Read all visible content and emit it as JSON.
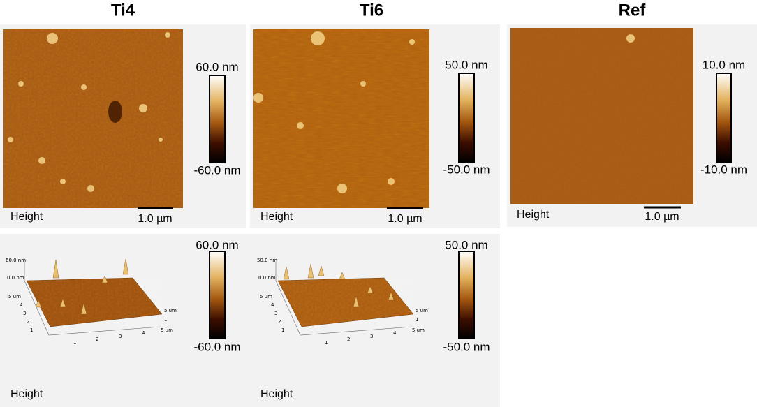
{
  "panels": [
    {
      "title": "Ti4",
      "top": {
        "max": "60.0 nm",
        "min": "-60.0 nm",
        "label": "Height",
        "scale": "1.0 µm"
      },
      "bottom": {
        "max": "60.0 nm",
        "min": "-60.0 nm",
        "label": "Height",
        "axis_labels": [
          "60.0 nm",
          "0.0 nm",
          "5 um",
          "4",
          "3",
          "2",
          "1",
          "1",
          "2",
          "3",
          "4",
          "5 um",
          "1",
          "5 um"
        ]
      }
    },
    {
      "title": "Ti6",
      "top": {
        "max": "50.0 nm",
        "min": "-50.0 nm",
        "label": "Height",
        "scale": "1.0 µm"
      },
      "bottom": {
        "max": "50.0 nm",
        "min": "-50.0 nm",
        "label": "Height",
        "axis_labels": [
          "50.0 nm",
          "0.0 nm",
          "5 um",
          "4",
          "3",
          "2",
          "1",
          "1",
          "2",
          "3",
          "4",
          "5 um",
          "1",
          "5 um"
        ]
      }
    },
    {
      "title": "Ref",
      "top": {
        "max": "10.0 nm",
        "min": "-10.0 nm",
        "label": "Height",
        "scale": "1.0 µm"
      }
    }
  ]
}
